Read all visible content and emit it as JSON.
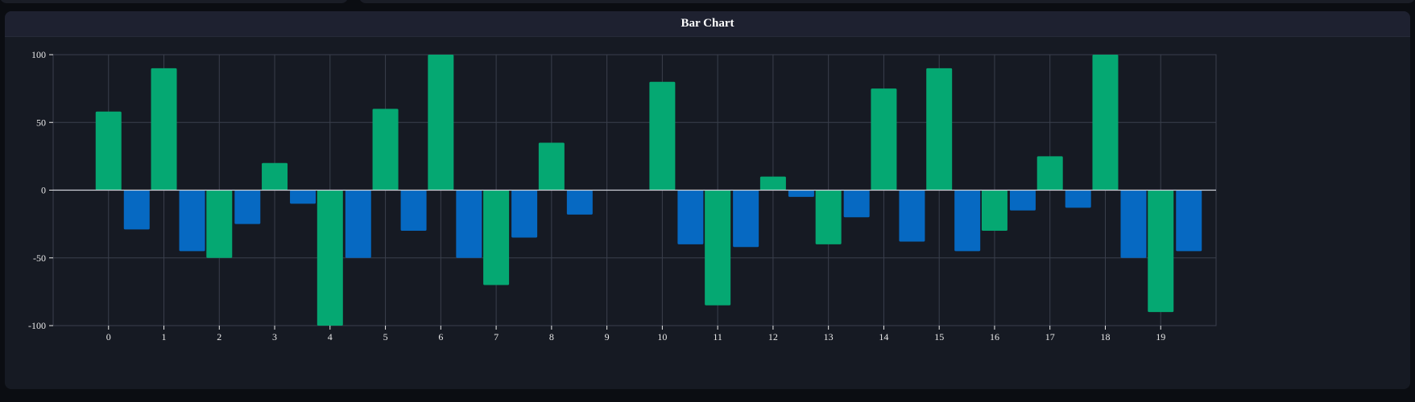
{
  "panel": {
    "title": "Bar Chart"
  },
  "colors": {
    "series_a": "#05a872",
    "series_b": "#0669c2",
    "grid": "#3a3f4c",
    "zero_line": "#d0d3da",
    "tick_text": "#e8e8e8"
  },
  "chart_data": {
    "type": "bar",
    "title": "Bar Chart",
    "xlabel": "",
    "ylabel": "",
    "ylim": [
      -100,
      100
    ],
    "yticks": [
      100,
      50,
      0,
      -50,
      -100
    ],
    "grid": true,
    "legend": "none",
    "categories": [
      "0",
      "1",
      "2",
      "3",
      "4",
      "5",
      "6",
      "7",
      "8",
      "9",
      "10",
      "11",
      "12",
      "13",
      "14",
      "15",
      "16",
      "17",
      "18",
      "19"
    ],
    "series": [
      {
        "color": "#05a872",
        "values": [
          58,
          90,
          -50,
          20,
          -100,
          60,
          100,
          -70,
          35,
          0,
          80,
          -85,
          10,
          -40,
          75,
          90,
          -30,
          25,
          100,
          -90
        ]
      },
      {
        "color": "#0669c2",
        "values": [
          -29,
          -45,
          -25,
          -10,
          -50,
          -30,
          -50,
          -35,
          -18,
          0,
          -40,
          -42,
          -5,
          -20,
          -38,
          -45,
          -15,
          -13,
          -50,
          -45
        ]
      }
    ]
  }
}
